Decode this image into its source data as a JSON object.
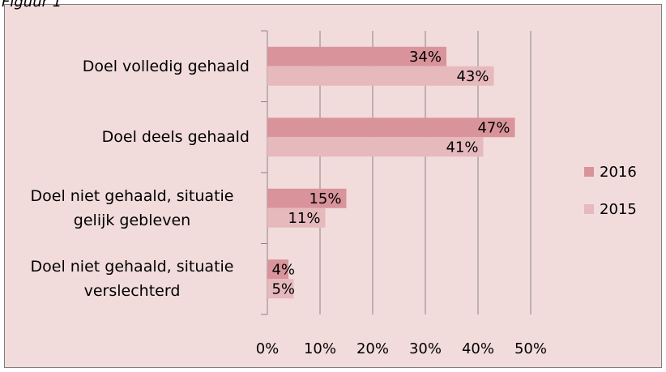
{
  "chart_data": {
    "type": "bar",
    "orientation": "horizontal",
    "title": "Figuur 1",
    "categories": [
      "Doel volledig gehaald",
      "Doel deels gehaald",
      "Doel niet gehaald, situatie gelijk gebleven",
      "Doel niet gehaald, situatie verslechterd"
    ],
    "series": [
      {
        "name": "2016",
        "color": "#d9949b",
        "values": [
          34,
          47,
          15,
          4
        ],
        "value_labels": [
          "34%",
          "47%",
          "15%",
          "4%"
        ]
      },
      {
        "name": "2015",
        "color": "#e6b9bd",
        "values": [
          43,
          41,
          11,
          5
        ],
        "value_labels": [
          "43%",
          "41%",
          "11%",
          "5%"
        ]
      }
    ],
    "xlim": [
      0,
      50
    ],
    "xticks": [
      {
        "value": 0,
        "label": "0%"
      },
      {
        "value": 10,
        "label": "10%"
      },
      {
        "value": 20,
        "label": "20%"
      },
      {
        "value": 30,
        "label": "30%"
      },
      {
        "value": 40,
        "label": "40%"
      },
      {
        "value": 50,
        "label": "50%"
      }
    ],
    "grid": true,
    "legend": "right"
  }
}
